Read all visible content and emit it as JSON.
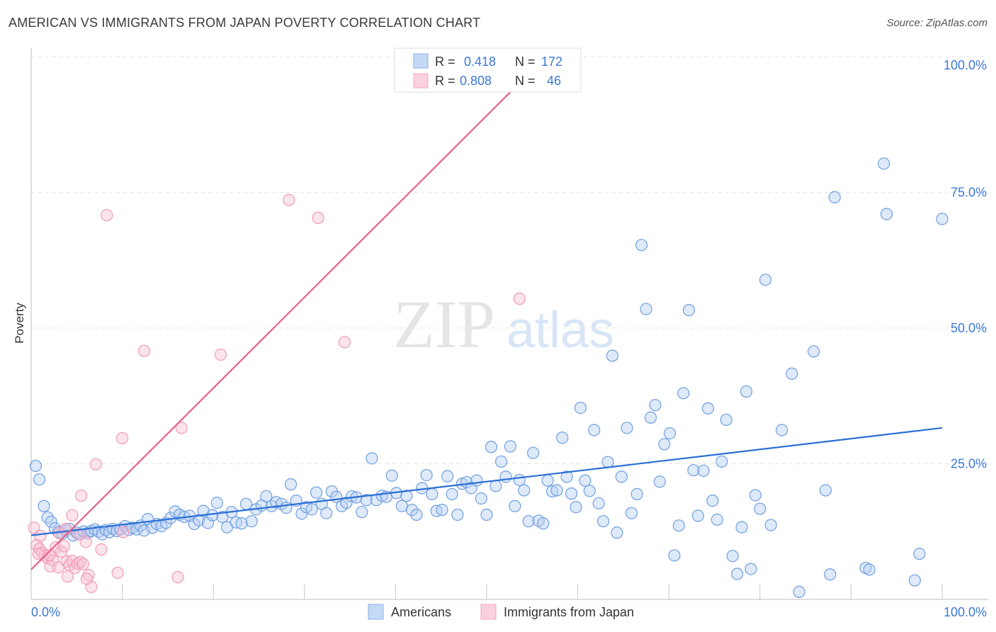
{
  "title": "AMERICAN VS IMMIGRANTS FROM JAPAN POVERTY CORRELATION CHART",
  "source": "Source: ZipAtlas.com",
  "watermark": {
    "zip": "ZIP",
    "atlas": "atlas"
  },
  "colors": {
    "blue": "#6f9fe0",
    "blue_line": "#2a6fd6",
    "pink": "#f09bb4",
    "pink_line": "#e8608c",
    "accent_text": "#3c78d8"
  },
  "legend_top": [
    {
      "r_label": "R =",
      "r_value": "0.418",
      "n_label": "N =",
      "n_value": "172"
    },
    {
      "r_label": "R =",
      "r_value": "0.808",
      "n_label": "N =",
      "n_value": "46"
    }
  ],
  "legend_bottom": [
    "Americans",
    "Immigrants from Japan"
  ],
  "chart_data": {
    "type": "scatter",
    "ylabel": "Poverty",
    "xlabel": "",
    "x_tick_labels": [
      "0.0%",
      "100.0%"
    ],
    "y_tick_labels": [
      "25.0%",
      "50.0%",
      "75.0%",
      "100.0%"
    ],
    "xlim": [
      0,
      100
    ],
    "ylim": [
      0,
      100
    ],
    "grid": true,
    "legend_position": "top-center",
    "series": [
      {
        "name": "Americans",
        "color": "#6f9fe0",
        "trend": {
          "x": [
            0,
            100
          ],
          "y": [
            11.8,
            31.6
          ]
        },
        "points": [
          [
            0.5,
            24.6
          ],
          [
            0.9,
            22.1
          ],
          [
            1.4,
            17.2
          ],
          [
            1.8,
            15.1
          ],
          [
            2.2,
            14.3
          ],
          [
            2.6,
            13.1
          ],
          [
            3.0,
            12.4
          ],
          [
            3.4,
            12.1
          ],
          [
            3.8,
            12.7
          ],
          [
            4.2,
            13.0
          ],
          [
            4.6,
            11.8
          ],
          [
            5.0,
            12.3
          ],
          [
            5.4,
            12.0
          ],
          [
            5.8,
            12.5
          ],
          [
            6.2,
            12.2
          ],
          [
            6.6,
            12.6
          ],
          [
            7.0,
            12.9
          ],
          [
            7.4,
            12.5
          ],
          [
            7.8,
            12.0
          ],
          [
            8.2,
            12.8
          ],
          [
            8.6,
            12.4
          ],
          [
            9.0,
            13.0
          ],
          [
            9.4,
            12.6
          ],
          [
            9.8,
            12.9
          ],
          [
            10.3,
            13.5
          ],
          [
            10.7,
            12.8
          ],
          [
            11.1,
            13.2
          ],
          [
            11.6,
            12.9
          ],
          [
            12.0,
            13.6
          ],
          [
            12.4,
            12.7
          ],
          [
            12.8,
            14.8
          ],
          [
            13.3,
            13.2
          ],
          [
            13.8,
            13.9
          ],
          [
            14.3,
            13.5
          ],
          [
            14.8,
            14.1
          ],
          [
            15.3,
            15.0
          ],
          [
            15.8,
            16.2
          ],
          [
            16.3,
            15.6
          ],
          [
            16.8,
            15.2
          ],
          [
            17.4,
            15.4
          ],
          [
            17.9,
            13.9
          ],
          [
            18.4,
            14.6
          ],
          [
            18.9,
            16.3
          ],
          [
            19.4,
            14.1
          ],
          [
            19.9,
            15.5
          ],
          [
            20.4,
            17.8
          ],
          [
            21.0,
            15.2
          ],
          [
            21.5,
            13.3
          ],
          [
            22.0,
            16.1
          ],
          [
            22.5,
            14.2
          ],
          [
            23.1,
            14.0
          ],
          [
            23.6,
            17.6
          ],
          [
            24.2,
            14.4
          ],
          [
            24.7,
            16.6
          ],
          [
            25.3,
            17.3
          ],
          [
            25.8,
            19.0
          ],
          [
            26.4,
            17.2
          ],
          [
            26.9,
            17.9
          ],
          [
            27.5,
            17.6
          ],
          [
            28.0,
            16.9
          ],
          [
            28.5,
            21.2
          ],
          [
            29.1,
            18.2
          ],
          [
            29.7,
            15.8
          ],
          [
            30.2,
            17.0
          ],
          [
            30.8,
            16.6
          ],
          [
            31.3,
            19.7
          ],
          [
            31.9,
            17.6
          ],
          [
            32.4,
            15.9
          ],
          [
            33.0,
            19.9
          ],
          [
            33.5,
            18.9
          ],
          [
            34.1,
            17.2
          ],
          [
            34.6,
            17.8
          ],
          [
            35.2,
            19.0
          ],
          [
            35.7,
            18.8
          ],
          [
            36.3,
            16.1
          ],
          [
            36.8,
            18.3
          ],
          [
            37.4,
            26.0
          ],
          [
            37.9,
            18.3
          ],
          [
            38.5,
            19.1
          ],
          [
            39.0,
            18.9
          ],
          [
            39.6,
            22.8
          ],
          [
            40.1,
            19.6
          ],
          [
            40.7,
            17.2
          ],
          [
            41.2,
            19.1
          ],
          [
            41.8,
            16.5
          ],
          [
            42.3,
            15.6
          ],
          [
            42.9,
            20.5
          ],
          [
            43.4,
            22.9
          ],
          [
            44.0,
            19.4
          ],
          [
            44.5,
            16.3
          ],
          [
            45.1,
            16.5
          ],
          [
            45.7,
            22.7
          ],
          [
            46.2,
            19.4
          ],
          [
            46.8,
            15.6
          ],
          [
            47.3,
            21.3
          ],
          [
            47.8,
            21.6
          ],
          [
            48.3,
            20.5
          ],
          [
            48.9,
            21.9
          ],
          [
            49.4,
            18.6
          ],
          [
            50.0,
            15.6
          ],
          [
            50.5,
            28.1
          ],
          [
            51.0,
            20.9
          ],
          [
            51.6,
            25.4
          ],
          [
            52.1,
            22.6
          ],
          [
            52.6,
            28.2
          ],
          [
            53.1,
            17.2
          ],
          [
            53.6,
            22.0
          ],
          [
            54.1,
            20.1
          ],
          [
            54.6,
            14.4
          ],
          [
            55.1,
            27.0
          ],
          [
            55.7,
            14.5
          ],
          [
            56.2,
            14.0
          ],
          [
            56.7,
            21.9
          ],
          [
            57.2,
            19.9
          ],
          [
            57.7,
            20.1
          ],
          [
            58.3,
            29.8
          ],
          [
            58.8,
            22.6
          ],
          [
            59.3,
            19.5
          ],
          [
            59.8,
            17.0
          ],
          [
            60.3,
            35.3
          ],
          [
            60.8,
            21.9
          ],
          [
            61.3,
            20.0
          ],
          [
            61.8,
            31.2
          ],
          [
            62.3,
            17.7
          ],
          [
            62.8,
            14.4
          ],
          [
            63.3,
            25.3
          ],
          [
            63.8,
            44.9
          ],
          [
            64.3,
            12.3
          ],
          [
            64.8,
            22.6
          ],
          [
            65.4,
            31.6
          ],
          [
            65.9,
            15.9
          ],
          [
            66.5,
            19.4
          ],
          [
            67.0,
            65.3
          ],
          [
            67.5,
            53.5
          ],
          [
            68.0,
            33.5
          ],
          [
            68.5,
            35.8
          ],
          [
            69.0,
            21.7
          ],
          [
            69.5,
            28.6
          ],
          [
            70.1,
            30.6
          ],
          [
            70.6,
            8.1
          ],
          [
            71.1,
            13.6
          ],
          [
            71.6,
            38.0
          ],
          [
            72.2,
            53.3
          ],
          [
            72.7,
            23.8
          ],
          [
            73.2,
            15.4
          ],
          [
            73.8,
            23.7
          ],
          [
            74.3,
            35.2
          ],
          [
            74.8,
            18.2
          ],
          [
            75.3,
            14.7
          ],
          [
            75.8,
            25.4
          ],
          [
            76.3,
            33.1
          ],
          [
            77.0,
            8.0
          ],
          [
            77.5,
            4.7
          ],
          [
            78.0,
            13.3
          ],
          [
            78.5,
            38.3
          ],
          [
            79.0,
            5.6
          ],
          [
            79.5,
            19.2
          ],
          [
            80.0,
            16.7
          ],
          [
            80.6,
            58.9
          ],
          [
            81.2,
            13.7
          ],
          [
            82.4,
            31.2
          ],
          [
            83.5,
            41.6
          ],
          [
            84.3,
            1.4
          ],
          [
            85.9,
            45.7
          ],
          [
            87.2,
            20.1
          ],
          [
            87.7,
            4.6
          ],
          [
            88.2,
            74.1
          ],
          [
            91.6,
            5.8
          ],
          [
            92.0,
            5.5
          ],
          [
            93.6,
            80.3
          ],
          [
            93.9,
            71.0
          ],
          [
            97.0,
            3.5
          ],
          [
            97.5,
            8.4
          ],
          [
            100.0,
            70.1
          ]
        ]
      },
      {
        "name": "Immigrants from Japan",
        "color": "#f09bb4",
        "trend": {
          "x": [
            0,
            56.5
          ],
          "y": [
            5.5,
            100
          ]
        },
        "points": [
          [
            0.3,
            13.2
          ],
          [
            0.6,
            10.0
          ],
          [
            0.9,
            9.3
          ],
          [
            1.2,
            8.6
          ],
          [
            1.5,
            8.1
          ],
          [
            1.8,
            7.6
          ],
          [
            2.1,
            6.1
          ],
          [
            2.4,
            7.2
          ],
          [
            2.7,
            9.6
          ],
          [
            3.0,
            5.9
          ],
          [
            3.3,
            8.8
          ],
          [
            3.6,
            9.8
          ],
          [
            3.9,
            7.0
          ],
          [
            4.2,
            6.3
          ],
          [
            4.5,
            7.1
          ],
          [
            4.8,
            5.8
          ],
          [
            5.1,
            6.6
          ],
          [
            5.4,
            6.9
          ],
          [
            5.7,
            6.5
          ],
          [
            6.0,
            10.6
          ],
          [
            4.5,
            15.5
          ],
          [
            5.5,
            19.1
          ],
          [
            3.1,
            12.2
          ],
          [
            6.3,
            4.5
          ],
          [
            6.6,
            2.3
          ],
          [
            7.1,
            24.9
          ],
          [
            7.7,
            9.2
          ],
          [
            8.3,
            70.8
          ],
          [
            9.5,
            4.9
          ],
          [
            10.0,
            29.7
          ],
          [
            10.1,
            12.4
          ],
          [
            12.4,
            45.8
          ],
          [
            16.1,
            4.1
          ],
          [
            16.5,
            31.6
          ],
          [
            20.8,
            45.1
          ],
          [
            28.3,
            73.6
          ],
          [
            31.5,
            70.3
          ],
          [
            34.4,
            47.4
          ],
          [
            53.6,
            55.4
          ],
          [
            2.0,
            8.2
          ],
          [
            3.8,
            13.0
          ],
          [
            4.0,
            4.2
          ],
          [
            5.2,
            12.0
          ],
          [
            6.1,
            3.8
          ],
          [
            1.0,
            11.7
          ],
          [
            0.8,
            8.4
          ]
        ]
      }
    ]
  }
}
